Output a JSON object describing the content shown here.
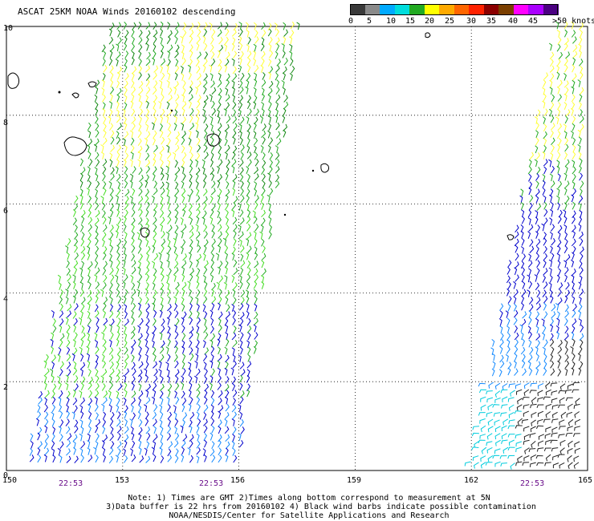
{
  "title": "ASCAT 25KM NOAA Winds 20160102 descending",
  "legend": {
    "units": ">50 knots",
    "labels": [
      "0",
      "5",
      "10",
      "15",
      "20",
      "25",
      "30",
      "35",
      "40",
      "45"
    ],
    "colors": [
      "#3a3a3a",
      "#8a8a8a",
      "#00aaff",
      "#00dddd",
      "#22aa22",
      "#ffff00",
      "#ffaa00",
      "#ff6600",
      "#ff2200",
      "#8b0000",
      "#7b3f00",
      "#ff00ff",
      "#aa00ff",
      "#4b0082"
    ]
  },
  "map": {
    "lon_labels": [
      "150",
      "153",
      "156",
      "159",
      "162",
      "165"
    ],
    "lat_labels": [
      "0",
      "2",
      "4",
      "6",
      "8",
      "10"
    ],
    "lon_range": [
      150,
      165
    ],
    "lat_range": [
      0,
      10
    ],
    "grid": "dotted",
    "wind_colors": {
      "yellow": "#ffff33",
      "green": "#22aa22",
      "lightgreen": "#44dd22",
      "darkgreen": "#118811",
      "blue": "#0000cc",
      "lightblue": "#1188ff",
      "cyan": "#00ccdd",
      "black": "#222222"
    }
  },
  "time_labels": [
    "22:53",
    "22:53",
    "22:53"
  ],
  "notes": [
    "Note: 1) Times are GMT 2)Times along bottom correspond to measurement at 5N",
    "3)Data buffer is 22 hrs from 20160102 4) Black wind barbs indicate possible contamination",
    "NOAA/NESDIS/Center for Satellite Applications and Research"
  ]
}
